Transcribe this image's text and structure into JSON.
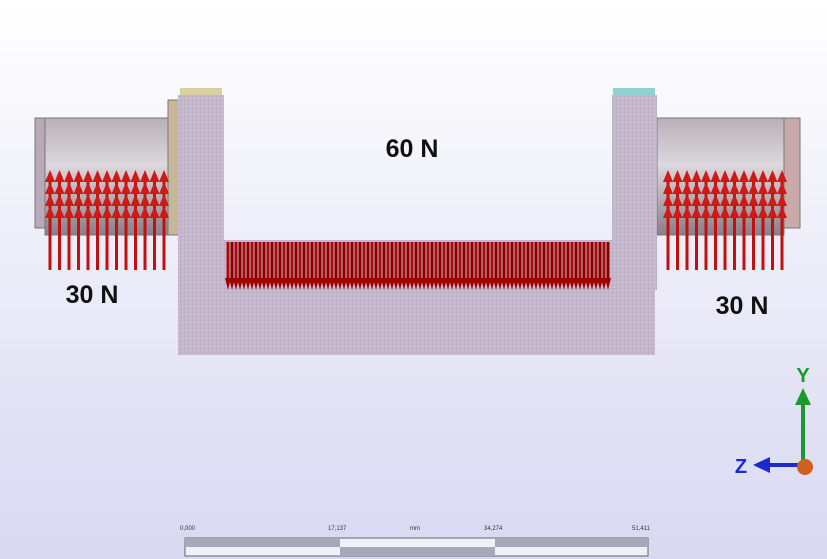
{
  "loads": {
    "center": "60 N",
    "left": "30 N",
    "right": "30 N"
  },
  "triad": {
    "y": "Y",
    "z": "Z"
  },
  "scale_bar": {
    "ticks": [
      "0,000",
      "17,137",
      "34,274",
      "51,411"
    ],
    "unit": "mm"
  }
}
